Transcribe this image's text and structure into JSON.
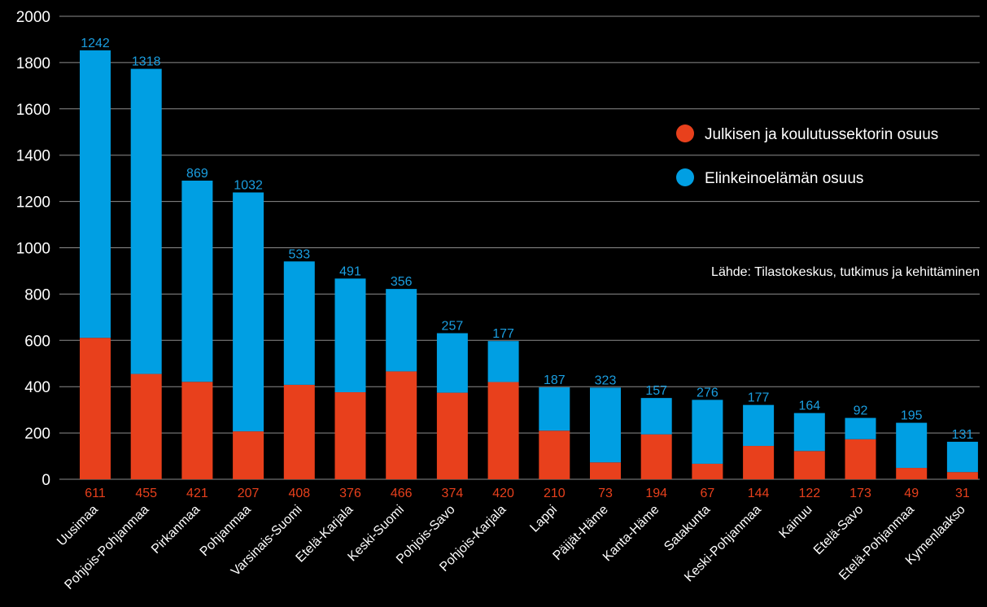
{
  "chart_data": {
    "type": "bar",
    "stacked": true,
    "categories": [
      "Uusimaa",
      "Pohjois-Pohjanmaa",
      "Pirkanmaa",
      "Pohjanmaa",
      "Varsinais-Suomi",
      "Etelä-Karjala",
      "Keski-Suomi",
      "Pohjois-Savo",
      "Pohjois-Karjala",
      "Lappi",
      "Päijät-Häme",
      "Kanta-Häme",
      "Satakunta",
      "Keski-Pohjanmaa",
      "Kainuu",
      "Etelä-Savo",
      "Etelä-Pohjanmaa",
      "Kymenlaakso"
    ],
    "series": [
      {
        "name": "Julkisen ja koulutussektorin osuus",
        "color": "#e8401c",
        "values": [
          611,
          455,
          421,
          207,
          408,
          376,
          466,
          374,
          420,
          210,
          73,
          194,
          67,
          144,
          122,
          173,
          49,
          31
        ]
      },
      {
        "name": "Elinkeinoelämän osuus",
        "color": "#009fe3",
        "values": [
          1242,
          1318,
          869,
          1032,
          533,
          491,
          356,
          257,
          177,
          187,
          323,
          157,
          276,
          177,
          164,
          92,
          195,
          131
        ]
      }
    ],
    "yticks": [
      0,
      200,
      400,
      600,
      800,
      1000,
      1200,
      1400,
      1600,
      1800,
      2000
    ],
    "ylim": [
      0,
      2000
    ],
    "grid": true,
    "legend_position": "right",
    "title": "",
    "xlabel": "",
    "ylabel": "",
    "source": "Lähde: Tilastokeskus, tutkimus ja kehittäminen"
  }
}
